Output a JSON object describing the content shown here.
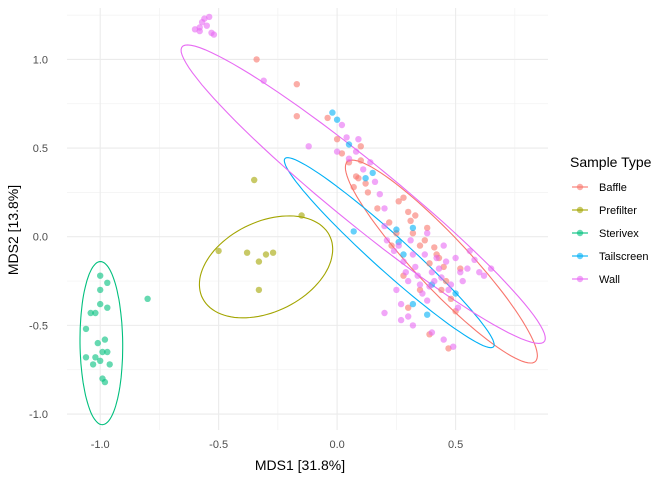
{
  "chart_data": {
    "type": "scatter",
    "xlabel": "MDS1 [31.8%]",
    "ylabel": "MDS2 [13.8%]",
    "xlim": [
      -1.14,
      0.89
    ],
    "ylim": [
      -1.09,
      1.29
    ],
    "x_ticks": [
      -1.0,
      -0.5,
      0.0,
      0.5
    ],
    "x_tick_labels": [
      "-1.0",
      "-0.5",
      "0.0",
      "0.5"
    ],
    "y_ticks": [
      -1.0,
      -0.5,
      0.0,
      0.5,
      1.0
    ],
    "y_tick_labels": [
      "-1.0",
      "-0.5",
      "0.0",
      "0.5",
      "1.0"
    ],
    "grid": true,
    "legend": {
      "title": "Sample Type",
      "placement": "right"
    },
    "series": [
      {
        "name": "Baffle",
        "color": "#F8766D",
        "points": [
          [
            -0.34,
            1.0
          ],
          [
            -0.17,
            0.86
          ],
          [
            -0.17,
            0.68
          ],
          [
            -0.04,
            0.67
          ],
          [
            0.0,
            0.55
          ],
          [
            0.02,
            0.47
          ],
          [
            0.05,
            0.42
          ],
          [
            0.08,
            0.34
          ],
          [
            0.07,
            0.28
          ],
          [
            0.09,
            0.33
          ],
          [
            0.1,
            0.43
          ],
          [
            0.1,
            0.51
          ],
          [
            0.12,
            0.3
          ],
          [
            0.13,
            0.25
          ],
          [
            0.17,
            0.16
          ],
          [
            0.22,
            0.08
          ],
          [
            0.25,
            0.02
          ],
          [
            0.23,
            -0.05
          ],
          [
            0.26,
            0.2
          ],
          [
            0.28,
            0.22
          ],
          [
            0.3,
            0.14
          ],
          [
            0.31,
            0.09
          ],
          [
            0.32,
            0.02
          ],
          [
            0.33,
            0.12
          ],
          [
            0.35,
            -0.05
          ],
          [
            0.37,
            -0.02
          ],
          [
            0.38,
            0.05
          ],
          [
            0.39,
            -0.15
          ],
          [
            0.41,
            -0.06
          ],
          [
            0.42,
            -0.1
          ],
          [
            0.43,
            -0.12
          ],
          [
            0.44,
            -0.3
          ],
          [
            0.45,
            -0.17
          ],
          [
            0.46,
            -0.25
          ],
          [
            0.48,
            -0.35
          ],
          [
            0.5,
            -0.42
          ],
          [
            0.52,
            -0.18
          ],
          [
            0.3,
            -0.4
          ],
          [
            0.35,
            -0.3
          ],
          [
            0.28,
            -0.22
          ],
          [
            0.39,
            -0.55
          ],
          [
            0.47,
            -0.63
          ]
        ],
        "ellipse": {
          "center": [
            0.44,
            -0.14
          ],
          "rx": 0.69,
          "ry": 0.125,
          "angle_deg": -55.4
        }
      },
      {
        "name": "Prefilter",
        "color": "#A3A500",
        "points": [
          [
            -0.35,
            0.32
          ],
          [
            -0.15,
            0.12
          ],
          [
            -0.5,
            -0.08
          ],
          [
            -0.38,
            -0.09
          ],
          [
            -0.3,
            -0.1
          ],
          [
            -0.27,
            -0.09
          ],
          [
            -0.33,
            -0.14
          ],
          [
            -0.33,
            -0.3
          ]
        ],
        "ellipse": {
          "center": [
            -0.3,
            -0.17
          ],
          "rx": 0.23,
          "ry": 0.33,
          "angle_deg": -43.2
        }
      },
      {
        "name": "Sterivex",
        "color": "#00BF7D",
        "points": [
          [
            -1.0,
            -0.22
          ],
          [
            -0.97,
            -0.26
          ],
          [
            -1.0,
            -0.3
          ],
          [
            -1.0,
            -0.38
          ],
          [
            -0.97,
            -0.4
          ],
          [
            -1.04,
            -0.43
          ],
          [
            -1.02,
            -0.43
          ],
          [
            -1.06,
            -0.52
          ],
          [
            -0.98,
            -0.58
          ],
          [
            -1.01,
            -0.6
          ],
          [
            -0.97,
            -0.65
          ],
          [
            -0.99,
            -0.65
          ],
          [
            -1.06,
            -0.68
          ],
          [
            -1.02,
            -0.68
          ],
          [
            -1.0,
            -0.7
          ],
          [
            -1.03,
            -0.72
          ],
          [
            -0.96,
            -0.72
          ],
          [
            -0.99,
            -0.8
          ],
          [
            -0.98,
            -0.82
          ],
          [
            -0.8,
            -0.35
          ]
        ],
        "ellipse": {
          "center": [
            -0.995,
            -0.6
          ],
          "rx": 0.09,
          "ry": 0.46,
          "angle_deg": 0.5
        }
      },
      {
        "name": "Tailscreen",
        "color": "#00B0F6",
        "points": [
          [
            -0.02,
            0.7
          ],
          [
            0.0,
            0.66
          ],
          [
            0.05,
            0.52
          ],
          [
            0.12,
            0.33
          ],
          [
            0.15,
            0.36
          ],
          [
            0.07,
            0.03
          ],
          [
            0.25,
            0.04
          ],
          [
            0.32,
            0.05
          ],
          [
            0.26,
            -0.03
          ],
          [
            0.28,
            -0.1
          ],
          [
            0.4,
            -0.27
          ],
          [
            0.5,
            -0.32
          ],
          [
            0.32,
            -0.38
          ],
          [
            0.38,
            -0.44
          ]
        ],
        "ellipse": {
          "center": [
            0.22,
            -0.09
          ],
          "rx": 0.69,
          "ry": 0.085,
          "angle_deg": -50.6
        }
      },
      {
        "name": "Wall",
        "color": "#E76BF3",
        "points": [
          [
            -0.58,
            1.18
          ],
          [
            -0.57,
            1.21
          ],
          [
            -0.55,
            1.19
          ],
          [
            -0.56,
            1.23
          ],
          [
            -0.54,
            1.24
          ],
          [
            -0.53,
            1.15
          ],
          [
            -0.58,
            1.16
          ],
          [
            -0.6,
            1.17
          ],
          [
            -0.52,
            1.14
          ],
          [
            -0.31,
            0.88
          ],
          [
            -0.12,
            0.51
          ],
          [
            0.0,
            0.48
          ],
          [
            0.02,
            0.63
          ],
          [
            0.04,
            0.56
          ],
          [
            0.05,
            0.44
          ],
          [
            0.08,
            0.48
          ],
          [
            0.09,
            0.55
          ],
          [
            0.11,
            0.38
          ],
          [
            0.14,
            0.42
          ],
          [
            0.16,
            0.31
          ],
          [
            0.18,
            0.24
          ],
          [
            0.2,
            0.16
          ],
          [
            0.2,
            0.06
          ],
          [
            0.21,
            -0.02
          ],
          [
            0.24,
            -0.08
          ],
          [
            0.26,
            -0.05
          ],
          [
            0.28,
            -0.14
          ],
          [
            0.29,
            -0.2
          ],
          [
            0.3,
            -0.25
          ],
          [
            0.31,
            -0.02
          ],
          [
            0.32,
            -0.1
          ],
          [
            0.33,
            -0.17
          ],
          [
            0.34,
            -0.22
          ],
          [
            0.35,
            -0.27
          ],
          [
            0.36,
            -0.32
          ],
          [
            0.37,
            -0.1
          ],
          [
            0.38,
            -0.36
          ],
          [
            0.38,
            0.02
          ],
          [
            0.39,
            -0.28
          ],
          [
            0.4,
            -0.2
          ],
          [
            0.41,
            -0.25
          ],
          [
            0.42,
            -0.12
          ],
          [
            0.43,
            -0.18
          ],
          [
            0.44,
            -0.23
          ],
          [
            0.45,
            -0.05
          ],
          [
            0.46,
            -0.14
          ],
          [
            0.47,
            -0.3
          ],
          [
            0.48,
            -0.27
          ],
          [
            0.5,
            -0.12
          ],
          [
            0.51,
            -0.4
          ],
          [
            0.52,
            -0.2
          ],
          [
            0.53,
            -0.25
          ],
          [
            0.55,
            -0.18
          ],
          [
            0.56,
            -0.08
          ],
          [
            0.58,
            -0.13
          ],
          [
            0.6,
            -0.2
          ],
          [
            0.62,
            -0.22
          ],
          [
            0.65,
            -0.18
          ],
          [
            0.27,
            -0.47
          ],
          [
            0.3,
            -0.45
          ],
          [
            0.32,
            -0.5
          ],
          [
            0.4,
            -0.54
          ],
          [
            0.45,
            -0.58
          ],
          [
            0.49,
            -0.62
          ],
          [
            0.27,
            -0.38
          ],
          [
            0.25,
            -0.3
          ],
          [
            0.2,
            -0.43
          ]
        ],
        "ellipse": {
          "center": [
            0.11,
            0.24
          ],
          "rx": 1.13,
          "ry": 0.15,
          "angle_deg": -47.7
        }
      }
    ]
  }
}
